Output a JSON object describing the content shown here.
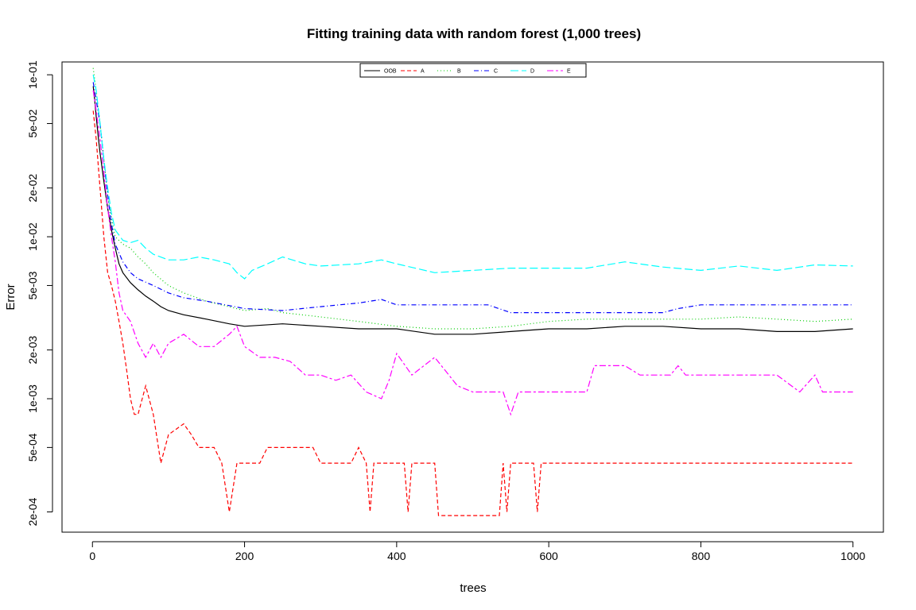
{
  "chart_data": {
    "type": "line",
    "title": "Fitting training data with random forest (1,000 trees)",
    "xlabel": "trees",
    "ylabel": "Error",
    "xlim": [
      -40,
      1040
    ],
    "ylim": [
      0.00015,
      0.12
    ],
    "y_scale": "log",
    "x_ticks": [
      0,
      200,
      400,
      600,
      800,
      1000
    ],
    "x_tick_labels": [
      "0",
      "200",
      "400",
      "600",
      "800",
      "1000"
    ],
    "y_ticks": [
      0.0002,
      0.0005,
      0.001,
      0.002,
      0.005,
      0.01,
      0.02,
      0.05,
      0.1
    ],
    "y_tick_labels": [
      "2e-04",
      "5e-04",
      "1e-03",
      "2e-03",
      "5e-03",
      "1e-02",
      "2e-02",
      "5e-02",
      "1e-01"
    ],
    "grid": false,
    "legend_position": "top-center",
    "series": [
      {
        "name": "OOB",
        "color": "#000000",
        "dash": "solid",
        "points": [
          [
            1,
            0.085
          ],
          [
            3,
            0.07
          ],
          [
            5,
            0.055
          ],
          [
            8,
            0.04
          ],
          [
            10,
            0.033
          ],
          [
            15,
            0.022
          ],
          [
            20,
            0.015
          ],
          [
            25,
            0.011
          ],
          [
            30,
            0.0085
          ],
          [
            35,
            0.0068
          ],
          [
            40,
            0.006
          ],
          [
            50,
            0.0052
          ],
          [
            60,
            0.0047
          ],
          [
            70,
            0.0043
          ],
          [
            80,
            0.004
          ],
          [
            90,
            0.0037
          ],
          [
            100,
            0.0035
          ],
          [
            120,
            0.0033
          ],
          [
            150,
            0.0031
          ],
          [
            180,
            0.0029
          ],
          [
            200,
            0.0028
          ],
          [
            250,
            0.0029
          ],
          [
            300,
            0.0028
          ],
          [
            350,
            0.0027
          ],
          [
            400,
            0.0027
          ],
          [
            450,
            0.0025
          ],
          [
            500,
            0.0025
          ],
          [
            550,
            0.0026
          ],
          [
            600,
            0.0027
          ],
          [
            650,
            0.0027
          ],
          [
            700,
            0.0028
          ],
          [
            750,
            0.0028
          ],
          [
            800,
            0.0027
          ],
          [
            850,
            0.0027
          ],
          [
            900,
            0.0026
          ],
          [
            950,
            0.0026
          ],
          [
            1000,
            0.0027
          ]
        ]
      },
      {
        "name": "A",
        "color": "#ff0000",
        "dash": "dashed",
        "points": [
          [
            1,
            0.06
          ],
          [
            5,
            0.04
          ],
          [
            10,
            0.02
          ],
          [
            15,
            0.01
          ],
          [
            20,
            0.006
          ],
          [
            25,
            0.005
          ],
          [
            30,
            0.004
          ],
          [
            35,
            0.003
          ],
          [
            40,
            0.0022
          ],
          [
            45,
            0.0015
          ],
          [
            50,
            0.001
          ],
          [
            55,
            0.0008
          ],
          [
            60,
            0.0008
          ],
          [
            70,
            0.0012
          ],
          [
            80,
            0.0008
          ],
          [
            90,
            0.0004
          ],
          [
            100,
            0.0006
          ],
          [
            120,
            0.0007
          ],
          [
            130,
            0.0006
          ],
          [
            140,
            0.0005
          ],
          [
            160,
            0.0005
          ],
          [
            170,
            0.0004
          ],
          [
            180,
            0.0002
          ],
          [
            190,
            0.0004
          ],
          [
            220,
            0.0004
          ],
          [
            230,
            0.0005
          ],
          [
            290,
            0.0005
          ],
          [
            300,
            0.0004
          ],
          [
            340,
            0.0004
          ],
          [
            350,
            0.0005
          ],
          [
            360,
            0.0004
          ],
          [
            365,
            0.0002
          ],
          [
            370,
            0.0004
          ],
          [
            410,
            0.0004
          ],
          [
            415,
            0.0002
          ],
          [
            420,
            0.0004
          ],
          [
            450,
            0.0004
          ],
          [
            455,
            0.00019
          ],
          [
            500,
            0.00019
          ],
          [
            535,
            0.00019
          ],
          [
            540,
            0.0004
          ],
          [
            545,
            0.0002
          ],
          [
            550,
            0.0004
          ],
          [
            580,
            0.0004
          ],
          [
            585,
            0.0002
          ],
          [
            590,
            0.0004
          ],
          [
            700,
            0.0004
          ],
          [
            800,
            0.0004
          ],
          [
            900,
            0.0004
          ],
          [
            1000,
            0.0004
          ]
        ]
      },
      {
        "name": "B",
        "color": "#00cd00",
        "dash": "dotted",
        "points": [
          [
            1,
            0.11
          ],
          [
            5,
            0.08
          ],
          [
            10,
            0.05
          ],
          [
            15,
            0.03
          ],
          [
            20,
            0.018
          ],
          [
            25,
            0.013
          ],
          [
            30,
            0.01
          ],
          [
            40,
            0.009
          ],
          [
            50,
            0.0085
          ],
          [
            60,
            0.0075
          ],
          [
            70,
            0.0068
          ],
          [
            80,
            0.006
          ],
          [
            100,
            0.005
          ],
          [
            120,
            0.0045
          ],
          [
            150,
            0.004
          ],
          [
            200,
            0.0035
          ],
          [
            230,
            0.0036
          ],
          [
            250,
            0.0034
          ],
          [
            300,
            0.0032
          ],
          [
            350,
            0.003
          ],
          [
            400,
            0.0028
          ],
          [
            450,
            0.0027
          ],
          [
            500,
            0.0027
          ],
          [
            550,
            0.0028
          ],
          [
            600,
            0.003
          ],
          [
            650,
            0.0031
          ],
          [
            700,
            0.0031
          ],
          [
            750,
            0.0031
          ],
          [
            800,
            0.0031
          ],
          [
            850,
            0.0032
          ],
          [
            900,
            0.0031
          ],
          [
            950,
            0.003
          ],
          [
            1000,
            0.0031
          ]
        ]
      },
      {
        "name": "C",
        "color": "#0000ff",
        "dash": "dashdot",
        "points": [
          [
            1,
            0.09
          ],
          [
            5,
            0.07
          ],
          [
            10,
            0.05
          ],
          [
            15,
            0.03
          ],
          [
            20,
            0.018
          ],
          [
            25,
            0.012
          ],
          [
            30,
            0.009
          ],
          [
            40,
            0.007
          ],
          [
            50,
            0.006
          ],
          [
            60,
            0.0055
          ],
          [
            80,
            0.005
          ],
          [
            100,
            0.0045
          ],
          [
            120,
            0.0042
          ],
          [
            150,
            0.004
          ],
          [
            200,
            0.0036
          ],
          [
            250,
            0.0035
          ],
          [
            300,
            0.0037
          ],
          [
            350,
            0.0039
          ],
          [
            380,
            0.0041
          ],
          [
            400,
            0.0038
          ],
          [
            450,
            0.0038
          ],
          [
            500,
            0.0038
          ],
          [
            520,
            0.0038
          ],
          [
            550,
            0.0034
          ],
          [
            600,
            0.0034
          ],
          [
            650,
            0.0034
          ],
          [
            700,
            0.0034
          ],
          [
            750,
            0.0034
          ],
          [
            770,
            0.0036
          ],
          [
            800,
            0.0038
          ],
          [
            850,
            0.0038
          ],
          [
            900,
            0.0038
          ],
          [
            950,
            0.0038
          ],
          [
            1000,
            0.0038
          ]
        ]
      },
      {
        "name": "D",
        "color": "#00ffff",
        "dash": "longdash",
        "points": [
          [
            1,
            0.1
          ],
          [
            5,
            0.08
          ],
          [
            10,
            0.05
          ],
          [
            15,
            0.03
          ],
          [
            20,
            0.02
          ],
          [
            25,
            0.014
          ],
          [
            30,
            0.011
          ],
          [
            40,
            0.0095
          ],
          [
            50,
            0.0092
          ],
          [
            60,
            0.0095
          ],
          [
            70,
            0.0085
          ],
          [
            80,
            0.0078
          ],
          [
            100,
            0.0072
          ],
          [
            120,
            0.0072
          ],
          [
            140,
            0.0075
          ],
          [
            160,
            0.0072
          ],
          [
            180,
            0.0068
          ],
          [
            190,
            0.006
          ],
          [
            200,
            0.0055
          ],
          [
            210,
            0.0062
          ],
          [
            230,
            0.0068
          ],
          [
            250,
            0.0075
          ],
          [
            280,
            0.0068
          ],
          [
            300,
            0.0066
          ],
          [
            350,
            0.0068
          ],
          [
            380,
            0.0072
          ],
          [
            400,
            0.0068
          ],
          [
            450,
            0.006
          ],
          [
            500,
            0.0062
          ],
          [
            550,
            0.0064
          ],
          [
            600,
            0.0064
          ],
          [
            650,
            0.0064
          ],
          [
            700,
            0.007
          ],
          [
            750,
            0.0065
          ],
          [
            800,
            0.0062
          ],
          [
            850,
            0.0066
          ],
          [
            900,
            0.0062
          ],
          [
            950,
            0.0067
          ],
          [
            1000,
            0.0066
          ]
        ]
      },
      {
        "name": "E",
        "color": "#ff00ff",
        "dash": "twodash",
        "points": [
          [
            1,
            0.08
          ],
          [
            5,
            0.06
          ],
          [
            10,
            0.04
          ],
          [
            15,
            0.025
          ],
          [
            20,
            0.015
          ],
          [
            25,
            0.01
          ],
          [
            30,
            0.007
          ],
          [
            35,
            0.0045
          ],
          [
            40,
            0.0035
          ],
          [
            50,
            0.003
          ],
          [
            60,
            0.0022
          ],
          [
            70,
            0.0018
          ],
          [
            80,
            0.0022
          ],
          [
            90,
            0.0018
          ],
          [
            100,
            0.0022
          ],
          [
            120,
            0.0025
          ],
          [
            140,
            0.0021
          ],
          [
            160,
            0.0021
          ],
          [
            180,
            0.0025
          ],
          [
            190,
            0.0028
          ],
          [
            200,
            0.0021
          ],
          [
            220,
            0.0018
          ],
          [
            240,
            0.0018
          ],
          [
            260,
            0.0017
          ],
          [
            280,
            0.0014
          ],
          [
            300,
            0.0014
          ],
          [
            320,
            0.0013
          ],
          [
            340,
            0.0014
          ],
          [
            360,
            0.0011
          ],
          [
            380,
            0.001
          ],
          [
            390,
            0.0013
          ],
          [
            400,
            0.0019
          ],
          [
            420,
            0.0014
          ],
          [
            450,
            0.0018
          ],
          [
            480,
            0.0012
          ],
          [
            500,
            0.0011
          ],
          [
            540,
            0.0011
          ],
          [
            550,
            0.0008
          ],
          [
            560,
            0.0011
          ],
          [
            600,
            0.0011
          ],
          [
            650,
            0.0011
          ],
          [
            660,
            0.0016
          ],
          [
            700,
            0.0016
          ],
          [
            720,
            0.0014
          ],
          [
            760,
            0.0014
          ],
          [
            770,
            0.0016
          ],
          [
            780,
            0.0014
          ],
          [
            850,
            0.0014
          ],
          [
            900,
            0.0014
          ],
          [
            930,
            0.0011
          ],
          [
            950,
            0.0014
          ],
          [
            960,
            0.0011
          ],
          [
            1000,
            0.0011
          ]
        ]
      }
    ]
  }
}
